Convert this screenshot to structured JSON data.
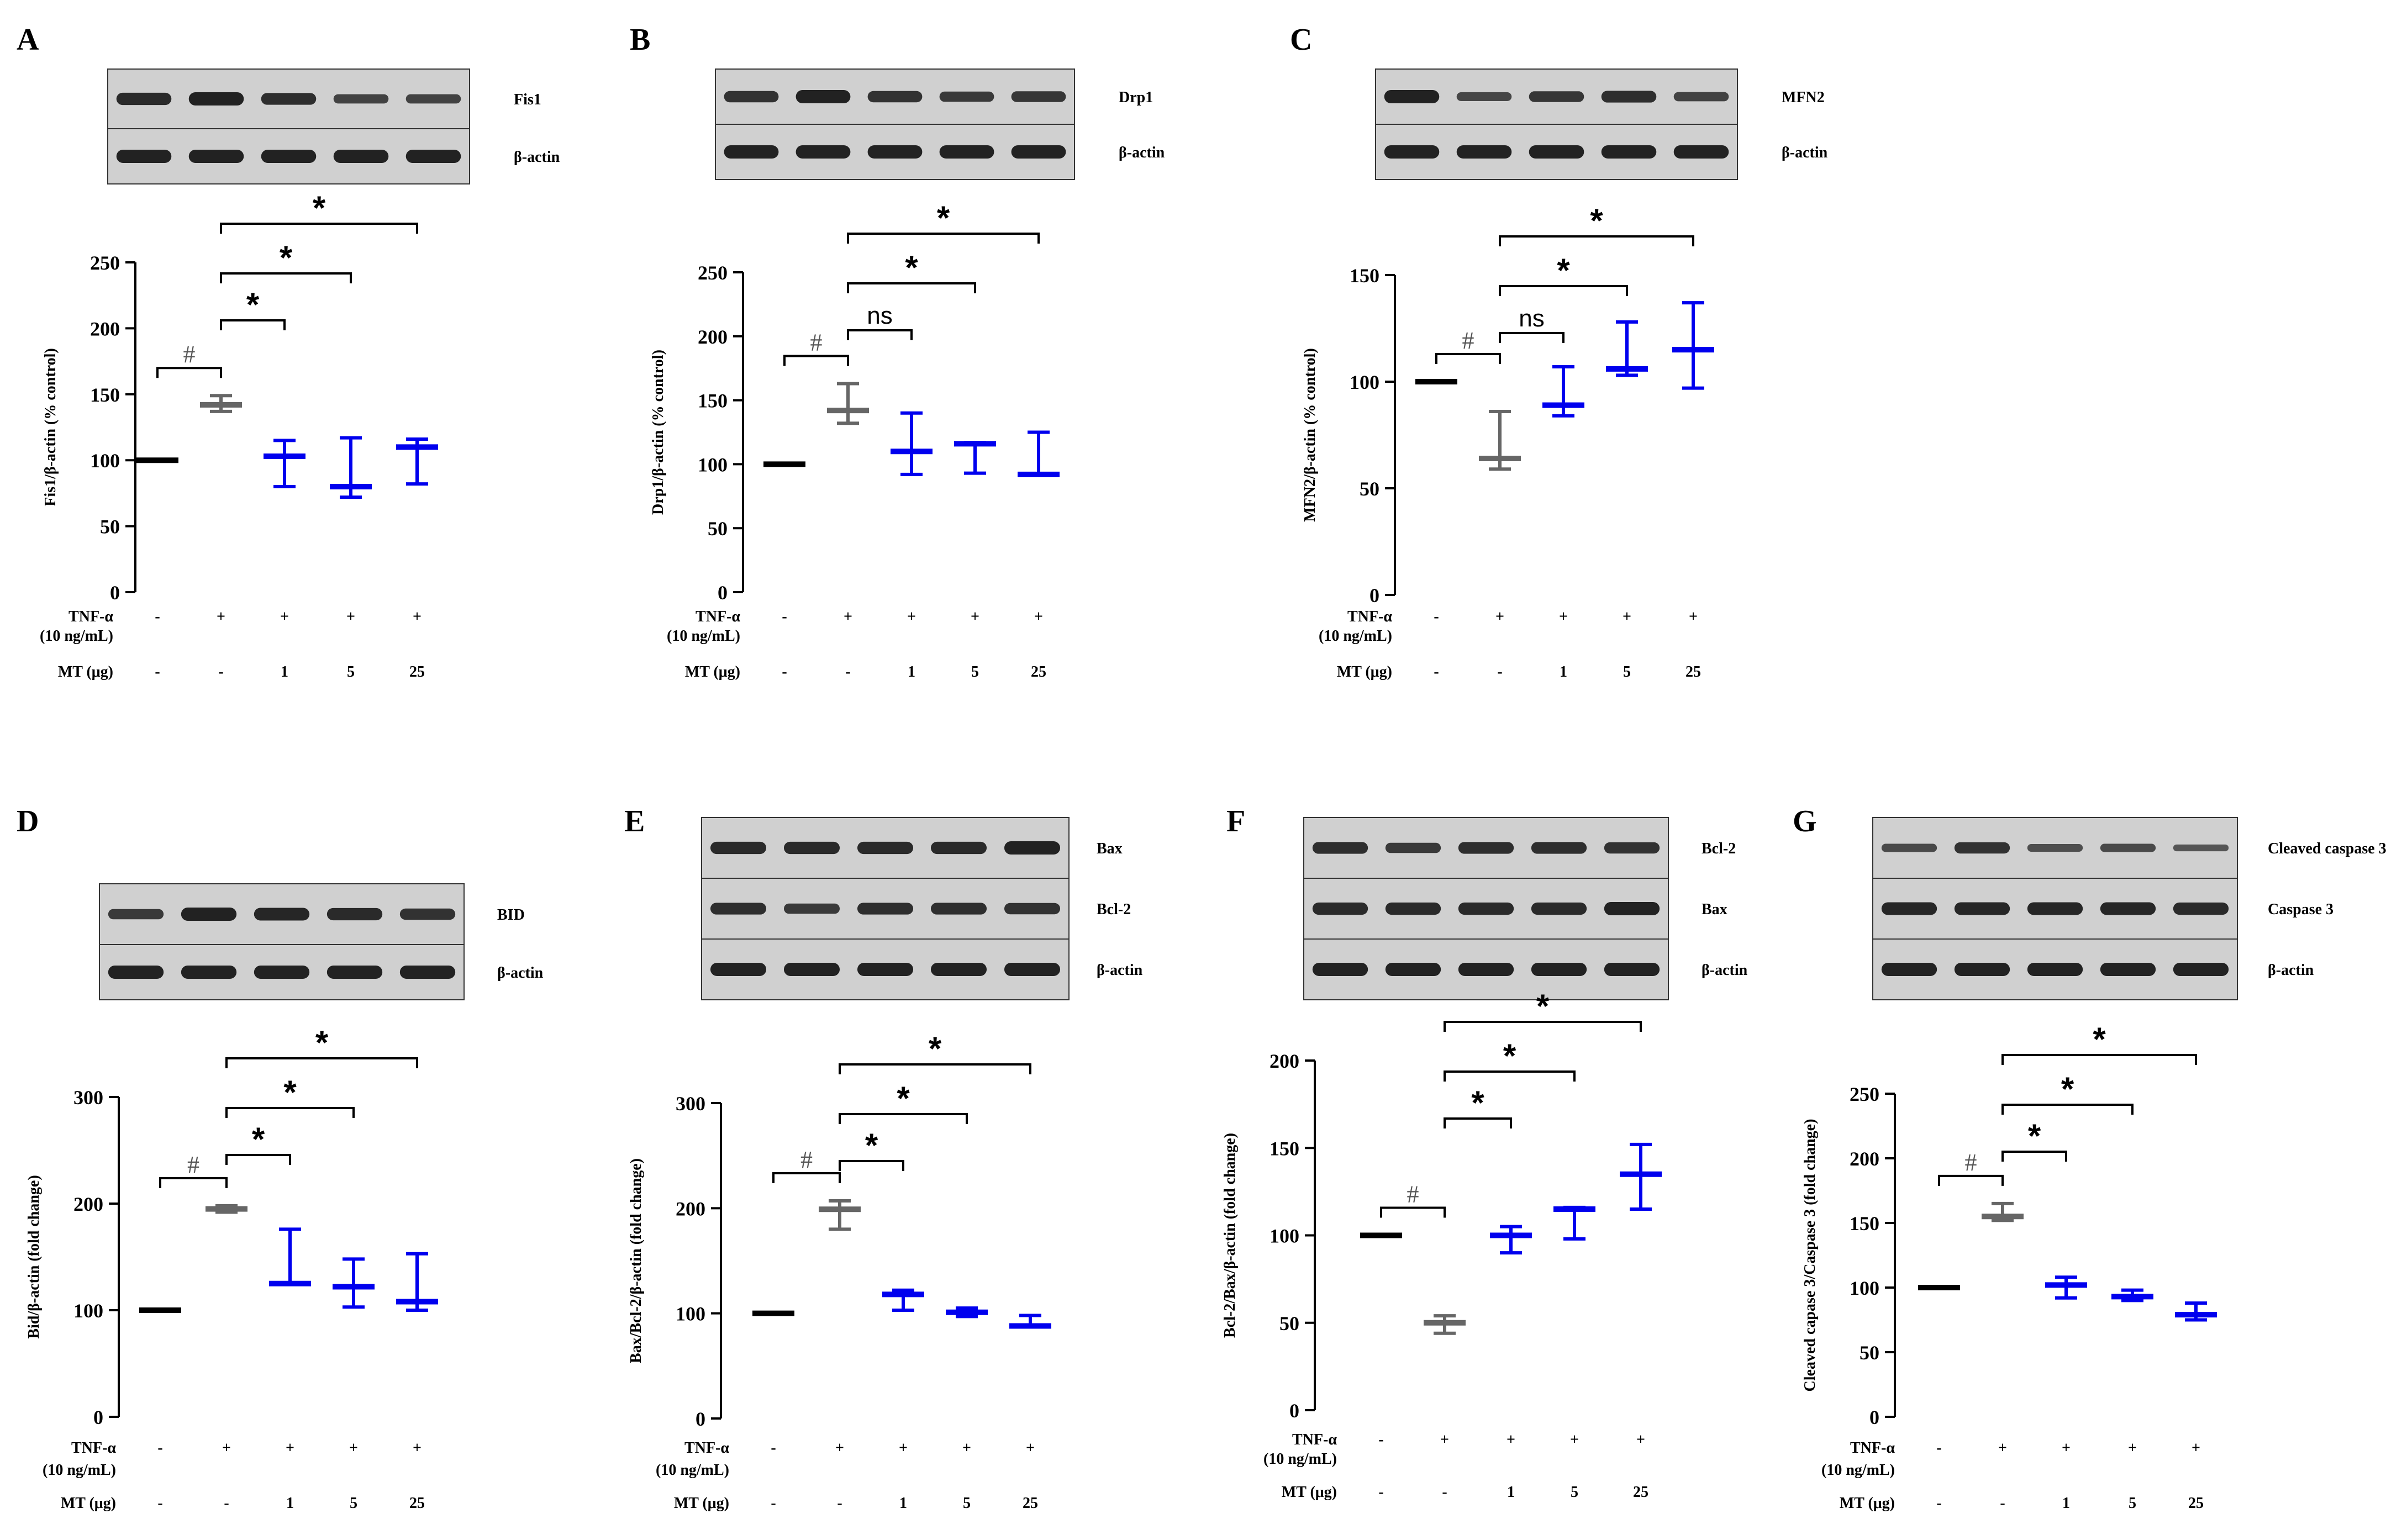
{
  "figure": {
    "condition_labels": {
      "tnf": "TNF-α",
      "tnf_conc": "(10 ng/mL)",
      "mt": "MT (μg)"
    },
    "tnf_values": [
      "-",
      "+",
      "+",
      "+",
      "+"
    ],
    "mt_values": [
      "-",
      "-",
      "1",
      "5",
      "25"
    ],
    "colors": {
      "control": "#000000",
      "tnf": "#666666",
      "mt": "#0000ee",
      "blot_bg": "#d0d0d0",
      "band": "#222222"
    }
  },
  "chart_data": [
    {
      "panel": "A",
      "type": "box",
      "blot_labels": [
        "Fis1",
        "β-actin"
      ],
      "ylabel": "Fis1/β-actin (% control)",
      "ylim": [
        0,
        250
      ],
      "yticks": [
        0,
        50,
        100,
        150,
        200,
        250
      ],
      "groups": [
        {
          "median": 100,
          "min": 100,
          "max": 100
        },
        {
          "median": 142,
          "min": 137,
          "max": 149
        },
        {
          "median": 103,
          "min": 80,
          "max": 115
        },
        {
          "median": 80,
          "min": 72,
          "max": 117
        },
        {
          "median": 110,
          "min": 82,
          "max": 116
        }
      ],
      "significance": [
        {
          "from": 0,
          "to": 1,
          "label": "#"
        },
        {
          "from": 1,
          "to": 2,
          "label": "*"
        },
        {
          "from": 1,
          "to": 3,
          "label": "*"
        },
        {
          "from": 1,
          "to": 4,
          "label": "*"
        }
      ]
    },
    {
      "panel": "B",
      "type": "box",
      "blot_labels": [
        "Drp1",
        "β-actin"
      ],
      "ylabel": "Drp1/β-actin (% control)",
      "ylim": [
        0,
        250
      ],
      "yticks": [
        0,
        50,
        100,
        150,
        200,
        250
      ],
      "groups": [
        {
          "median": 100,
          "min": 100,
          "max": 100
        },
        {
          "median": 142,
          "min": 132,
          "max": 163
        },
        {
          "median": 110,
          "min": 92,
          "max": 140
        },
        {
          "median": 116,
          "min": 93,
          "max": 117
        },
        {
          "median": 92,
          "min": 92,
          "max": 125
        }
      ],
      "significance": [
        {
          "from": 0,
          "to": 1,
          "label": "#"
        },
        {
          "from": 1,
          "to": 2,
          "label": "ns"
        },
        {
          "from": 1,
          "to": 3,
          "label": "*"
        },
        {
          "from": 1,
          "to": 4,
          "label": "*"
        }
      ]
    },
    {
      "panel": "C",
      "type": "box",
      "blot_labels": [
        "MFN2",
        "β-actin"
      ],
      "ylabel": "MFN2/β-actin (% control)",
      "ylim": [
        0,
        150
      ],
      "yticks": [
        0,
        50,
        100,
        150
      ],
      "groups": [
        {
          "median": 100,
          "min": 100,
          "max": 100
        },
        {
          "median": 64,
          "min": 59,
          "max": 86
        },
        {
          "median": 89,
          "min": 84,
          "max": 107
        },
        {
          "median": 106,
          "min": 103,
          "max": 128
        },
        {
          "median": 115,
          "min": 97,
          "max": 137
        }
      ],
      "significance": [
        {
          "from": 0,
          "to": 1,
          "label": "#"
        },
        {
          "from": 1,
          "to": 2,
          "label": "ns"
        },
        {
          "from": 1,
          "to": 3,
          "label": "*"
        },
        {
          "from": 1,
          "to": 4,
          "label": "*"
        }
      ]
    },
    {
      "panel": "D",
      "type": "box",
      "blot_labels": [
        "BID",
        "β-actin"
      ],
      "ylabel": "Bid/β-actin (fold change)",
      "ylim": [
        0,
        300
      ],
      "yticks": [
        0,
        100,
        200,
        300
      ],
      "groups": [
        {
          "median": 100,
          "min": 100,
          "max": 100
        },
        {
          "median": 195,
          "min": 192,
          "max": 198
        },
        {
          "median": 125,
          "min": 125,
          "max": 176
        },
        {
          "median": 122,
          "min": 103,
          "max": 148
        },
        {
          "median": 108,
          "min": 100,
          "max": 153
        }
      ],
      "significance": [
        {
          "from": 0,
          "to": 1,
          "label": "#"
        },
        {
          "from": 1,
          "to": 2,
          "label": "*"
        },
        {
          "from": 1,
          "to": 3,
          "label": "*"
        },
        {
          "from": 1,
          "to": 4,
          "label": "*"
        }
      ]
    },
    {
      "panel": "E",
      "type": "box",
      "blot_labels": [
        "Bax",
        "Bcl-2",
        "β-actin"
      ],
      "ylabel": "Bax/Bcl-2/β-actin (fold change)",
      "ylim": [
        0,
        300
      ],
      "yticks": [
        0,
        100,
        200,
        300
      ],
      "groups": [
        {
          "median": 100,
          "min": 100,
          "max": 100
        },
        {
          "median": 199,
          "min": 180,
          "max": 207
        },
        {
          "median": 118,
          "min": 103,
          "max": 122
        },
        {
          "median": 101,
          "min": 97,
          "max": 105
        },
        {
          "median": 88,
          "min": 88,
          "max": 98
        }
      ],
      "significance": [
        {
          "from": 0,
          "to": 1,
          "label": "#"
        },
        {
          "from": 1,
          "to": 2,
          "label": "*"
        },
        {
          "from": 1,
          "to": 3,
          "label": "*"
        },
        {
          "from": 1,
          "to": 4,
          "label": "*"
        }
      ]
    },
    {
      "panel": "F",
      "type": "box",
      "blot_labels": [
        "Bcl-2",
        "Bax",
        "β-actin"
      ],
      "ylabel": "Bcl-2/Bax/β-actin (fold change)",
      "ylim": [
        0,
        200
      ],
      "yticks": [
        0,
        50,
        100,
        150,
        200
      ],
      "groups": [
        {
          "median": 100,
          "min": 100,
          "max": 100
        },
        {
          "median": 50,
          "min": 44,
          "max": 54
        },
        {
          "median": 100,
          "min": 90,
          "max": 105
        },
        {
          "median": 115,
          "min": 98,
          "max": 116
        },
        {
          "median": 135,
          "min": 115,
          "max": 152
        }
      ],
      "significance": [
        {
          "from": 0,
          "to": 1,
          "label": "#"
        },
        {
          "from": 1,
          "to": 2,
          "label": "*"
        },
        {
          "from": 1,
          "to": 3,
          "label": "*"
        },
        {
          "from": 1,
          "to": 4,
          "label": "*"
        }
      ]
    },
    {
      "panel": "G",
      "type": "box",
      "blot_labels": [
        "Cleaved caspase 3",
        "Caspase 3",
        "β-actin"
      ],
      "ylabel": "Cleaved capase 3/Caspase 3 (fold change)",
      "ylim": [
        0,
        250
      ],
      "yticks": [
        0,
        50,
        100,
        150,
        200,
        250
      ],
      "groups": [
        {
          "median": 100,
          "min": 100,
          "max": 100
        },
        {
          "median": 155,
          "min": 152,
          "max": 165
        },
        {
          "median": 102,
          "min": 92,
          "max": 108
        },
        {
          "median": 93,
          "min": 90,
          "max": 98
        },
        {
          "median": 79,
          "min": 75,
          "max": 88
        }
      ],
      "significance": [
        {
          "from": 0,
          "to": 1,
          "label": "#"
        },
        {
          "from": 1,
          "to": 2,
          "label": "*"
        },
        {
          "from": 1,
          "to": 3,
          "label": "*"
        },
        {
          "from": 1,
          "to": 4,
          "label": "*"
        }
      ]
    }
  ]
}
